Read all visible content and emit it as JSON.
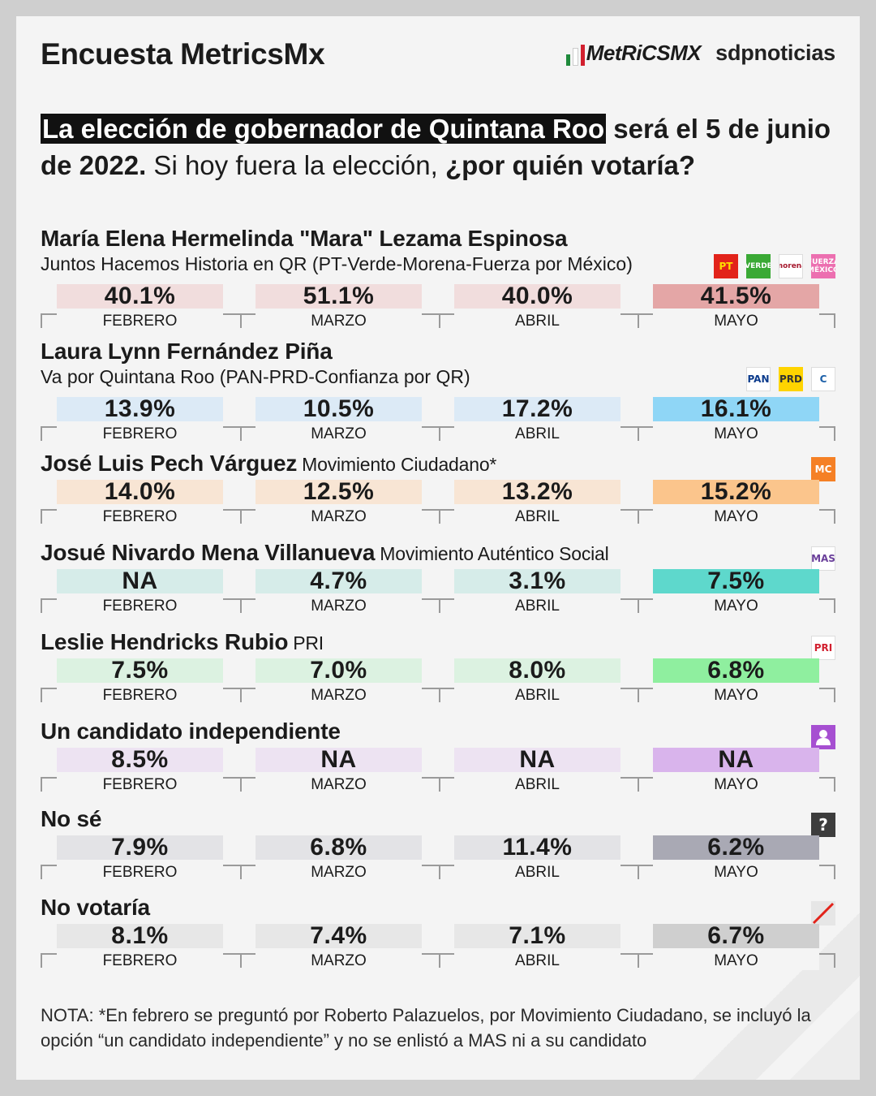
{
  "header": {
    "title": "Encuesta MetricsMx",
    "logo_metrics": "MetRiCSMX",
    "logo_sdp": "sdpnoticias"
  },
  "question": {
    "highlight": "La elección de gobernador de Quintana Roo",
    "part1": " será el 5 de junio de 2022.",
    "part2": " Si hoy fuera la elección, ",
    "part3": "¿por quién votaría?"
  },
  "months": [
    "FEBRERO",
    "MARZO",
    "ABRIL",
    "MAYO"
  ],
  "note": "NOTA: *En febrero se preguntó por Roberto Palazuelos, por Movimiento Ciudadano, se incluyó la opción “un candidato independiente” y no se enlistó a MAS ni a su candidato",
  "chart_data": {
    "type": "table",
    "title": "Encuesta MetricsMx",
    "columns": [
      "FEBRERO",
      "MARZO",
      "ABRIL",
      "MAYO"
    ],
    "rows": [
      {
        "name": "María Elena Hermelinda \"Mara\" Lezama Espinosa",
        "party": "Juntos Hacemos Historia en QR (PT-Verde-Morena-Fuerza por México)",
        "party_inline": false,
        "values": [
          "40.1%",
          "51.1%",
          "40.0%",
          "41.5%"
        ],
        "light": "#f1dddd",
        "strong": "#e4a6a6",
        "logos": [
          {
            "label": "PT",
            "bg": "#e2231a",
            "fg": "#ffde00"
          },
          {
            "label": "VERDE",
            "bg": "#3aa935",
            "fg": "#ffffff"
          },
          {
            "label": "morena",
            "bg": "#ffffff",
            "fg": "#a6192e"
          },
          {
            "label": "FUERZA MÉXICO",
            "bg": "#ec6fb0",
            "fg": "#ffffff"
          }
        ]
      },
      {
        "name": "Laura Lynn Fernández Piña",
        "party": "Va por Quintana Roo (PAN-PRD-Confianza por QR)",
        "party_inline": false,
        "values": [
          "13.9%",
          "10.5%",
          "17.2%",
          "16.1%"
        ],
        "light": "#dceaf6",
        "strong": "#8fd6f6",
        "logos": [
          {
            "label": "PAN",
            "bg": "#ffffff",
            "fg": "#0b3b8c"
          },
          {
            "label": "PRD",
            "bg": "#ffd400",
            "fg": "#333333"
          },
          {
            "label": "C",
            "bg": "#ffffff",
            "fg": "#1b5fa8"
          }
        ]
      },
      {
        "name": "José Luis Pech Várguez",
        "party": "Movimiento Ciudadano*",
        "party_inline": true,
        "values": [
          "14.0%",
          "12.5%",
          "13.2%",
          "15.2%"
        ],
        "light": "#f8e5d4",
        "strong": "#fbc58c",
        "logos": [
          {
            "label": "MC",
            "bg": "#f58025",
            "fg": "#ffffff"
          }
        ]
      },
      {
        "name": "Josué Nivardo Mena Villanueva",
        "party": "Movimiento Auténtico Social",
        "party_inline": true,
        "values": [
          "NA",
          "4.7%",
          "3.1%",
          "7.5%"
        ],
        "light": "#d6ece9",
        "strong": "#5ed8cc",
        "logos": [
          {
            "label": "MAS",
            "bg": "#ffffff",
            "fg": "#6a3f9a"
          }
        ]
      },
      {
        "name": "Leslie Hendricks Rubio",
        "party": "PRI",
        "party_inline": true,
        "values": [
          "7.5%",
          "7.0%",
          "8.0%",
          "6.8%"
        ],
        "light": "#dcf2e1",
        "strong": "#8fef9f",
        "logos": [
          {
            "label": "PRI",
            "bg": "#ffffff",
            "fg": "#d2202f"
          }
        ]
      },
      {
        "name": "Un candidato independiente",
        "party": "",
        "party_inline": true,
        "values": [
          "8.5%",
          "NA",
          "NA",
          "NA"
        ],
        "light": "#ede3f2",
        "strong": "#d9b4ec",
        "logos": [
          {
            "label": "person",
            "bg": "#a64fd1",
            "fg": "#ffffff"
          }
        ]
      },
      {
        "name": "No sé",
        "party": "",
        "party_inline": true,
        "values": [
          "7.9%",
          "6.8%",
          "11.4%",
          "6.2%"
        ],
        "light": "#e3e3e6",
        "strong": "#a9a9b4",
        "logos": [
          {
            "label": "?",
            "bg": "#3d3d3d",
            "fg": "#ffffff"
          }
        ]
      },
      {
        "name": "No votaría",
        "party": "",
        "party_inline": true,
        "values": [
          "8.1%",
          "7.4%",
          "7.1%",
          "6.7%"
        ],
        "light": "#e7e7e7",
        "strong": "#cfcfcf",
        "logos": [
          {
            "label": "slash",
            "bg": "#e6e6e6",
            "fg": "#e2231a"
          }
        ]
      }
    ]
  }
}
